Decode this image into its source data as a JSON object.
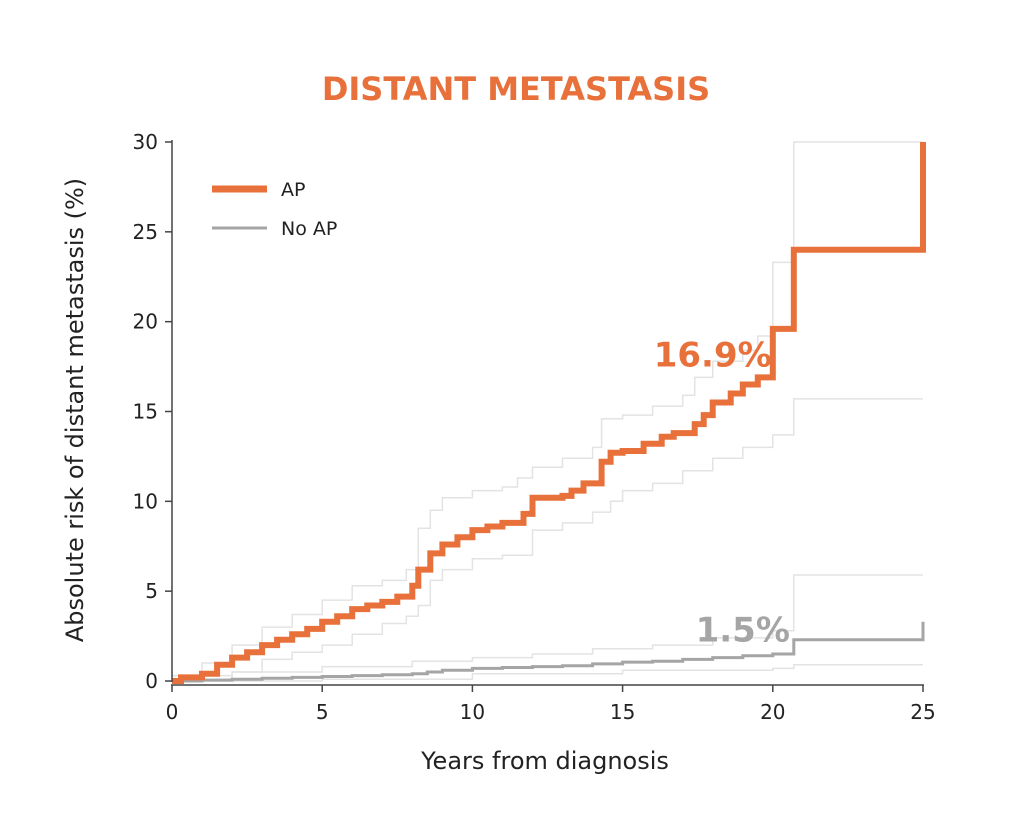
{
  "chart_data": {
    "type": "line",
    "title": "DISTANT METASTASIS",
    "xlabel": "Years from diagnosis",
    "ylabel": "Absolute risk of distant metastasis (%)",
    "xlim": [
      0,
      25
    ],
    "ylim": [
      0,
      30
    ],
    "xticks": [
      "0",
      "5",
      "10",
      "15",
      "20",
      "25"
    ],
    "yticks": [
      "0",
      "5",
      "10",
      "15",
      "20",
      "25",
      "30"
    ],
    "legend_position": "top-left",
    "grid": false,
    "colors": {
      "title": "#E8703A",
      "AP": "#E8703A",
      "No AP": "#A5A5A5",
      "ci": "#E3E3E3",
      "axis": "#444444"
    },
    "annotations": [
      {
        "text": "16.9%",
        "series": "AP",
        "x": 18,
        "y": 17.5
      },
      {
        "text": "1.5%",
        "series": "No AP",
        "x": 19,
        "y": 2.2
      }
    ],
    "series": [
      {
        "name": "AP",
        "style": "step",
        "x": [
          0,
          0.3,
          1.0,
          1.5,
          2.0,
          2.5,
          3.0,
          3.5,
          4.0,
          4.5,
          5.0,
          5.5,
          6.0,
          6.5,
          7.0,
          7.5,
          8.0,
          8.2,
          8.6,
          9.0,
          9.5,
          10.0,
          10.5,
          11.0,
          11.7,
          12.0,
          13.0,
          13.3,
          13.7,
          14.3,
          14.6,
          15.0,
          15.7,
          16.3,
          16.7,
          17.4,
          17.7,
          18.0,
          18.6,
          19.0,
          19.5,
          20.0,
          20.7,
          25.0,
          25.0
        ],
        "y": [
          0.0,
          0.2,
          0.4,
          0.9,
          1.3,
          1.6,
          2.0,
          2.3,
          2.6,
          2.9,
          3.3,
          3.6,
          4.0,
          4.2,
          4.4,
          4.7,
          5.3,
          6.2,
          7.1,
          7.6,
          8.0,
          8.4,
          8.6,
          8.8,
          9.3,
          10.2,
          10.3,
          10.6,
          11.0,
          12.2,
          12.7,
          12.8,
          13.2,
          13.6,
          13.8,
          14.3,
          14.8,
          15.5,
          16.0,
          16.5,
          16.9,
          19.6,
          24.0,
          24.0,
          30.0
        ]
      },
      {
        "name": "No AP",
        "style": "step",
        "x": [
          0,
          1,
          2,
          3,
          4,
          5,
          6,
          7,
          8,
          8.5,
          9,
          10,
          11,
          12,
          13,
          14,
          15,
          16,
          17,
          18,
          19,
          20,
          20.7,
          25.0,
          25.0
        ],
        "y": [
          0.0,
          0.05,
          0.1,
          0.15,
          0.2,
          0.25,
          0.3,
          0.35,
          0.4,
          0.5,
          0.6,
          0.7,
          0.75,
          0.8,
          0.85,
          0.95,
          1.05,
          1.1,
          1.2,
          1.3,
          1.4,
          1.5,
          2.3,
          2.3,
          3.3
        ]
      },
      {
        "name": "AP upper CI",
        "style": "ci",
        "x": [
          0,
          1,
          2,
          3,
          4,
          5,
          6,
          7,
          7.8,
          8.2,
          8.6,
          9,
          10,
          11,
          11.5,
          12.0,
          13,
          14,
          14.3,
          15,
          16,
          17,
          17.4,
          18,
          19,
          19.5,
          20,
          20.7,
          25
        ],
        "y": [
          0.3,
          1.0,
          2.0,
          3.0,
          3.7,
          4.5,
          5.3,
          5.6,
          6.2,
          8.5,
          9.5,
          10.2,
          10.6,
          10.8,
          11.3,
          11.9,
          12.4,
          13.0,
          14.6,
          14.8,
          15.3,
          15.9,
          16.9,
          17.8,
          18.4,
          19.2,
          23.3,
          30.0,
          30.0
        ]
      },
      {
        "name": "AP lower CI",
        "style": "ci",
        "x": [
          0,
          1,
          2,
          3,
          4,
          5,
          6,
          7,
          7.8,
          8.2,
          8.6,
          9,
          10,
          11,
          12.0,
          13,
          14,
          14.6,
          15,
          16,
          17,
          18,
          19,
          20,
          20.7,
          25
        ],
        "y": [
          0.0,
          0.1,
          0.5,
          1.2,
          1.6,
          2.0,
          2.6,
          3.2,
          3.6,
          4.2,
          5.6,
          6.2,
          6.8,
          7.0,
          8.4,
          8.8,
          9.4,
          10.0,
          10.6,
          11.0,
          11.7,
          12.4,
          13.0,
          13.7,
          15.7,
          15.7
        ]
      },
      {
        "name": "No AP upper CI",
        "style": "ci",
        "x": [
          0,
          2,
          5,
          8,
          10,
          12,
          14,
          16,
          18,
          20,
          20.7,
          25
        ],
        "y": [
          0.3,
          0.5,
          0.8,
          1.1,
          1.3,
          1.5,
          1.8,
          2.0,
          2.4,
          2.8,
          5.9,
          5.9
        ]
      },
      {
        "name": "No AP lower CI",
        "style": "ci",
        "x": [
          0,
          5,
          10,
          15,
          20,
          20.7,
          25
        ],
        "y": [
          0.0,
          0.1,
          0.4,
          0.6,
          0.7,
          0.9,
          0.9
        ]
      }
    ]
  }
}
